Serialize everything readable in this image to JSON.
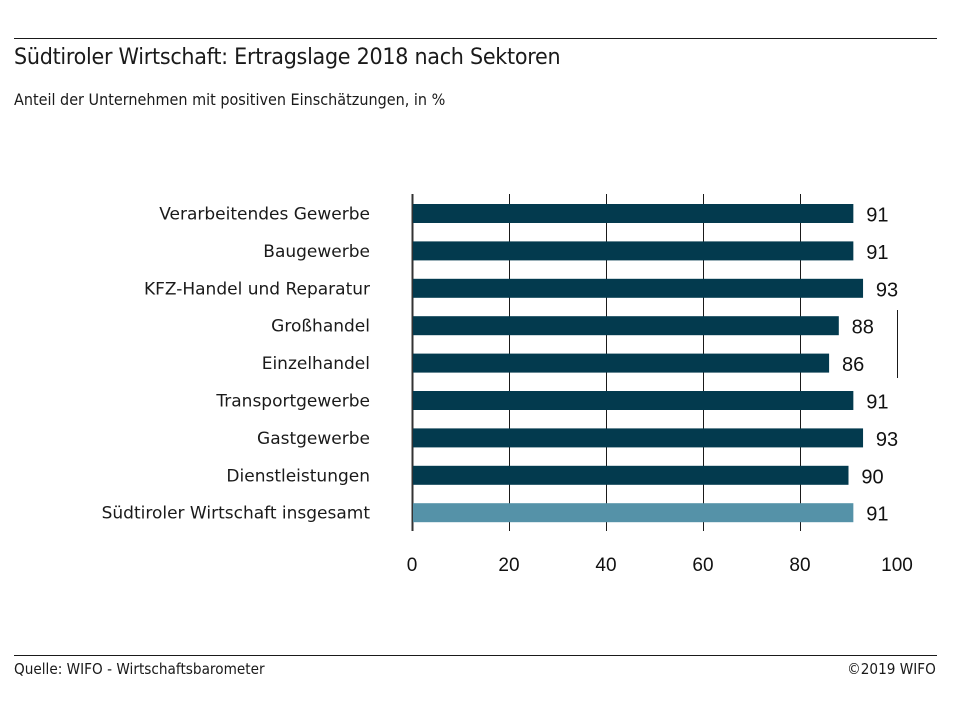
{
  "header": {
    "title": "Südtiroler Wirtschaft: Ertragslage 2018 nach Sektoren",
    "subtitle": "Anteil der Unternehmen mit positiven Einschätzungen, in %"
  },
  "footer": {
    "source": "Quelle: WIFO - Wirtschaftsbarometer",
    "copyright": "©2019 WIFO"
  },
  "colors": {
    "sector_bar": "#033a4e",
    "total_bar": "#5592a8",
    "grid": "#1a1a1a"
  },
  "chart_data": {
    "type": "bar",
    "orientation": "horizontal",
    "title": "Südtiroler Wirtschaft: Ertragslage 2018 nach Sektoren",
    "subtitle": "Anteil der Unternehmen mit positiven Einschätzungen, in %",
    "xlabel": "",
    "ylabel": "",
    "xlim": [
      0,
      100
    ],
    "xticks": [
      0,
      20,
      40,
      60,
      80,
      100
    ],
    "grid": true,
    "legend": "none",
    "categories": [
      "Verarbeitendes Gewerbe",
      "Baugewerbe",
      "KFZ-Handel und Reparatur",
      "Großhandel",
      "Einzelhandel",
      "Transportgewerbe",
      "Gastgewerbe",
      "Dienstleistungen",
      "Südtiroler Wirtschaft insgesamt"
    ],
    "values": [
      91,
      91,
      93,
      88,
      86,
      91,
      93,
      90,
      91
    ],
    "highlight": [
      false,
      false,
      false,
      false,
      false,
      false,
      false,
      false,
      true
    ]
  }
}
